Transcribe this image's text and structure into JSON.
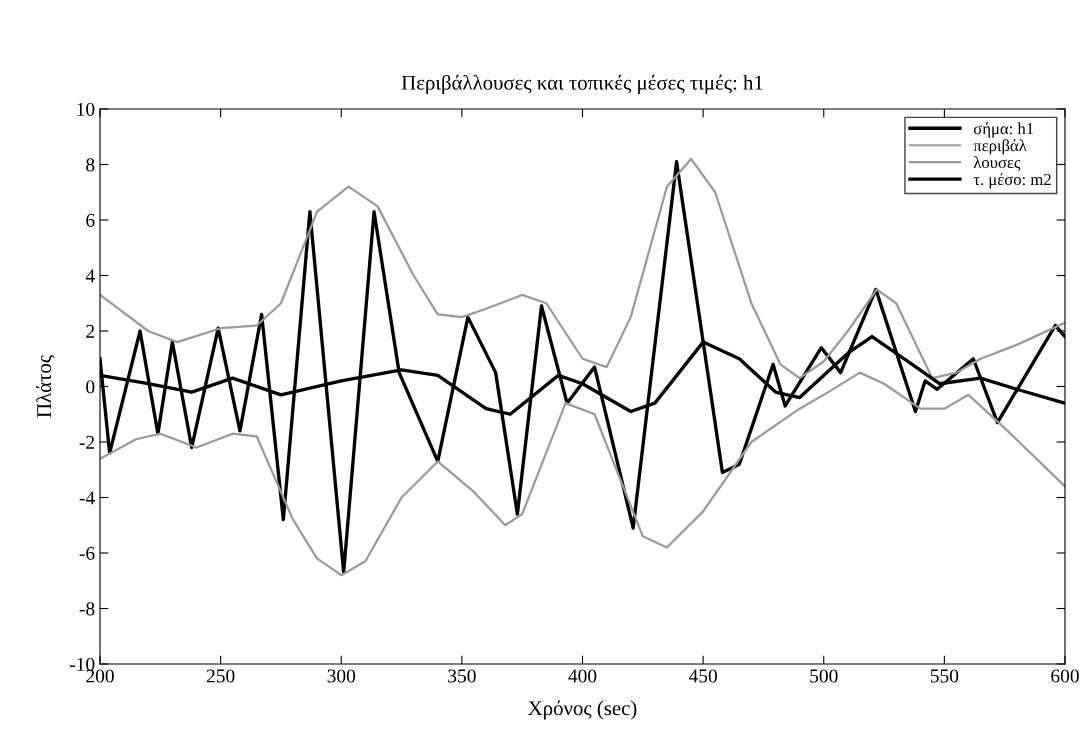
{
  "chart_data": {
    "type": "line",
    "title": "Περιβάλλουσες και τοπικές μέσες τιμές: h1",
    "xlabel": "Χρόνος (sec)",
    "ylabel": "Πλάτος",
    "xlim": [
      200,
      600
    ],
    "xticks": [
      200,
      250,
      300,
      350,
      400,
      450,
      500,
      550,
      600
    ],
    "ylim": [
      -10,
      10
    ],
    "yticks": [
      -10,
      -8,
      -6,
      -4,
      -2,
      0,
      2,
      4,
      6,
      8,
      10
    ],
    "grid": false,
    "legend": "top right",
    "line_style": "solid",
    "marker": "none",
    "series": [
      {
        "name": "σήμα: h1",
        "color": "#000000",
        "x": [
          200,
          204,
          216.6,
          224,
          230,
          238,
          249,
          258,
          267,
          276,
          287,
          301,
          313.6,
          324,
          340,
          352.5,
          364,
          373,
          383,
          393.6,
          405,
          421,
          439,
          458,
          465,
          479,
          484,
          499,
          507,
          521.6,
          538,
          542,
          547,
          562,
          572,
          596,
          600
        ],
        "values": [
          1.0,
          -2.4,
          2.0,
          -1.7,
          1.6,
          -2.2,
          2.1,
          -1.6,
          2.6,
          -4.8,
          6.3,
          -6.7,
          6.3,
          0.5,
          -2.7,
          2.5,
          0.5,
          -4.6,
          2.9,
          -0.6,
          0.7,
          -5.1,
          8.1,
          -3.1,
          -2.8,
          0.8,
          -0.7,
          1.4,
          0.5,
          3.5,
          -0.9,
          0.2,
          -0.1,
          1.0,
          -1.3,
          2.2,
          1.8
        ]
      },
      {
        "name": "περιβάλ",
        "color": "#9a9a9a",
        "x": [
          200,
          220,
          232,
          250,
          265,
          275,
          290,
          303,
          315,
          330,
          340,
          350,
          360,
          375,
          385,
          400,
          410,
          420,
          435,
          445,
          455,
          470,
          482,
          490,
          500,
          510,
          522,
          530,
          545,
          555,
          565,
          580,
          600
        ],
        "values": [
          3.3,
          2.0,
          1.6,
          2.1,
          2.2,
          3.0,
          6.3,
          7.2,
          6.5,
          4.0,
          2.6,
          2.5,
          2.8,
          3.3,
          3.0,
          1.0,
          0.7,
          2.5,
          7.2,
          8.2,
          7.0,
          3.0,
          0.8,
          0.3,
          0.9,
          2.0,
          3.5,
          3.0,
          0.3,
          0.5,
          1.0,
          1.5,
          2.3
        ]
      },
      {
        "name": "λουσες",
        "color": "#9a9a9a",
        "x": [
          200,
          215,
          225,
          240,
          255,
          265,
          280,
          290,
          300,
          310,
          325,
          340,
          355,
          368,
          375,
          393,
          405,
          415,
          425,
          435,
          450,
          470,
          490,
          500,
          515,
          525,
          540,
          550,
          560,
          575,
          600
        ],
        "values": [
          -2.6,
          -1.9,
          -1.7,
          -2.2,
          -1.7,
          -1.8,
          -4.8,
          -6.2,
          -6.8,
          -6.3,
          -4.0,
          -2.7,
          -3.8,
          -5.0,
          -4.6,
          -0.6,
          -1.0,
          -3.2,
          -5.4,
          -5.8,
          -4.5,
          -2.0,
          -0.8,
          -0.3,
          0.5,
          0.1,
          -0.8,
          -0.8,
          -0.3,
          -1.5,
          -3.6
        ]
      },
      {
        "name": "τ. μέσο: m2",
        "color": "#000000",
        "x": [
          200,
          220,
          238,
          255,
          275,
          300,
          325,
          340,
          360,
          370,
          390,
          400,
          420,
          430,
          450,
          465,
          480,
          490,
          510,
          520,
          535,
          548,
          565,
          580,
          600
        ],
        "values": [
          0.4,
          0.1,
          -0.2,
          0.3,
          -0.3,
          0.2,
          0.6,
          0.4,
          -0.8,
          -1.0,
          0.4,
          0.1,
          -0.9,
          -0.6,
          1.6,
          1.0,
          -0.2,
          -0.4,
          1.2,
          1.8,
          0.9,
          0.1,
          0.3,
          -0.1,
          -0.6
        ]
      }
    ]
  }
}
